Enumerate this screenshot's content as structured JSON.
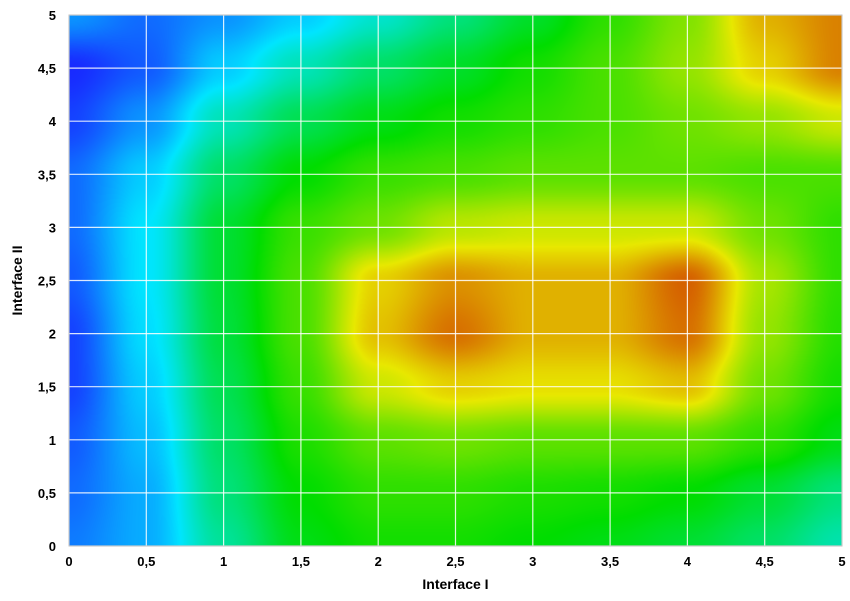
{
  "chart_data": {
    "type": "heatmap",
    "xlabel": "Interface I",
    "ylabel": "Interface II",
    "xlim": [
      0,
      5
    ],
    "ylim": [
      0,
      5
    ],
    "x_ticks": [
      0,
      0.5,
      1,
      1.5,
      2,
      2.5,
      3,
      3.5,
      4,
      4.5,
      5
    ],
    "y_ticks": [
      0,
      0.5,
      1,
      1.5,
      2,
      2.5,
      3,
      3.5,
      4,
      4.5,
      5
    ],
    "x_tick_labels": [
      "0",
      "0,5",
      "1",
      "1,5",
      "2",
      "2,5",
      "3",
      "3,5",
      "4",
      "4,5",
      "5"
    ],
    "y_tick_labels": [
      "0",
      "0,5",
      "1",
      "1,5",
      "2",
      "2,5",
      "3",
      "3,5",
      "4",
      "4,5",
      "5"
    ],
    "grid": true,
    "colormap": [
      "#1a1aff",
      "#00e5ff",
      "#00dd00",
      "#e8e800",
      "#cc2200"
    ],
    "value_range": [
      0,
      1
    ],
    "y": [
      0,
      0.5,
      1,
      1.5,
      2,
      2.5,
      3,
      3.5,
      4,
      4.5,
      5
    ],
    "x": [
      0,
      0.5,
      1,
      1.5,
      2,
      2.5,
      3,
      3.5,
      4,
      4.5,
      5
    ],
    "z": [
      [
        0.12,
        0.18,
        0.35,
        0.48,
        0.52,
        0.52,
        0.5,
        0.48,
        0.45,
        0.4,
        0.33
      ],
      [
        0.1,
        0.18,
        0.38,
        0.5,
        0.55,
        0.55,
        0.53,
        0.52,
        0.5,
        0.45,
        0.38
      ],
      [
        0.08,
        0.2,
        0.4,
        0.53,
        0.6,
        0.62,
        0.6,
        0.6,
        0.6,
        0.55,
        0.48
      ],
      [
        0.05,
        0.22,
        0.42,
        0.56,
        0.72,
        0.78,
        0.76,
        0.76,
        0.8,
        0.62,
        0.52
      ],
      [
        0.05,
        0.24,
        0.44,
        0.58,
        0.8,
        0.9,
        0.82,
        0.82,
        0.9,
        0.66,
        0.54
      ],
      [
        0.08,
        0.25,
        0.45,
        0.58,
        0.78,
        0.86,
        0.82,
        0.82,
        0.92,
        0.68,
        0.55
      ],
      [
        0.1,
        0.25,
        0.45,
        0.56,
        0.62,
        0.7,
        0.72,
        0.72,
        0.72,
        0.62,
        0.55
      ],
      [
        0.1,
        0.22,
        0.4,
        0.5,
        0.56,
        0.58,
        0.6,
        0.6,
        0.6,
        0.58,
        0.58
      ],
      [
        0.05,
        0.15,
        0.32,
        0.42,
        0.48,
        0.52,
        0.55,
        0.58,
        0.62,
        0.66,
        0.72
      ],
      [
        0.02,
        0.08,
        0.22,
        0.32,
        0.4,
        0.46,
        0.52,
        0.58,
        0.66,
        0.78,
        0.88
      ],
      [
        0.15,
        0.1,
        0.15,
        0.22,
        0.3,
        0.38,
        0.46,
        0.55,
        0.64,
        0.82,
        0.88
      ]
    ]
  }
}
